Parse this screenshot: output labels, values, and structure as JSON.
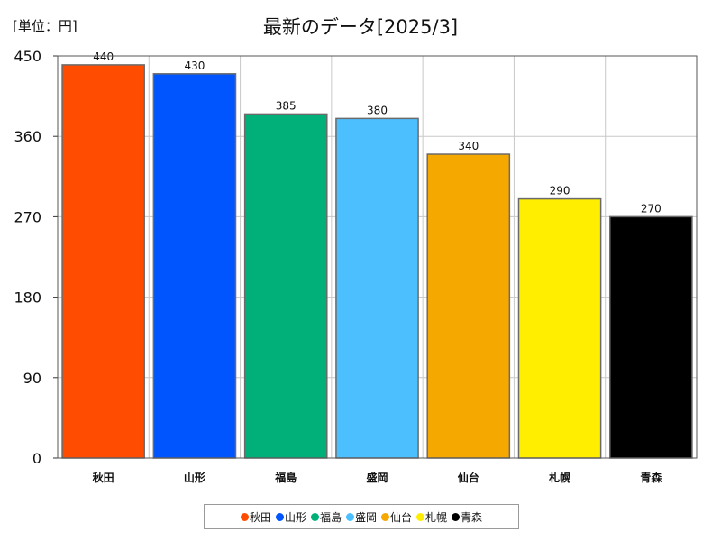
{
  "header": {
    "unit_label": "[単位：円]",
    "title": "最新のデータ[2025/3]"
  },
  "chart_data": {
    "type": "bar",
    "title": "最新のデータ[2025/3]",
    "xlabel": "",
    "ylabel": "[単位：円]",
    "categories": [
      "秋田",
      "山形",
      "福島",
      "盛岡",
      "仙台",
      "札幌",
      "青森"
    ],
    "values": [
      440,
      430,
      385,
      380,
      340,
      290,
      270
    ],
    "data_labels": [
      "440",
      "430",
      "385",
      "380",
      "340",
      "290",
      "270"
    ],
    "colors": [
      "#ff4c00",
      "#0055ff",
      "#00b078",
      "#4cc0ff",
      "#f5a800",
      "#ffee00",
      "#000000"
    ],
    "ylim": [
      0,
      450
    ],
    "yticks": [
      0,
      90,
      180,
      270,
      360,
      450
    ],
    "grid": true,
    "legend_position": "bottom-center"
  },
  "legend": {
    "items": [
      {
        "label": "秋田",
        "color": "#ff4c00"
      },
      {
        "label": "山形",
        "color": "#0055ff"
      },
      {
        "label": "福島",
        "color": "#00b078"
      },
      {
        "label": "盛岡",
        "color": "#4cc0ff"
      },
      {
        "label": "仙台",
        "color": "#f5a800"
      },
      {
        "label": "札幌",
        "color": "#ffee00"
      },
      {
        "label": "青森",
        "color": "#000000"
      }
    ]
  }
}
